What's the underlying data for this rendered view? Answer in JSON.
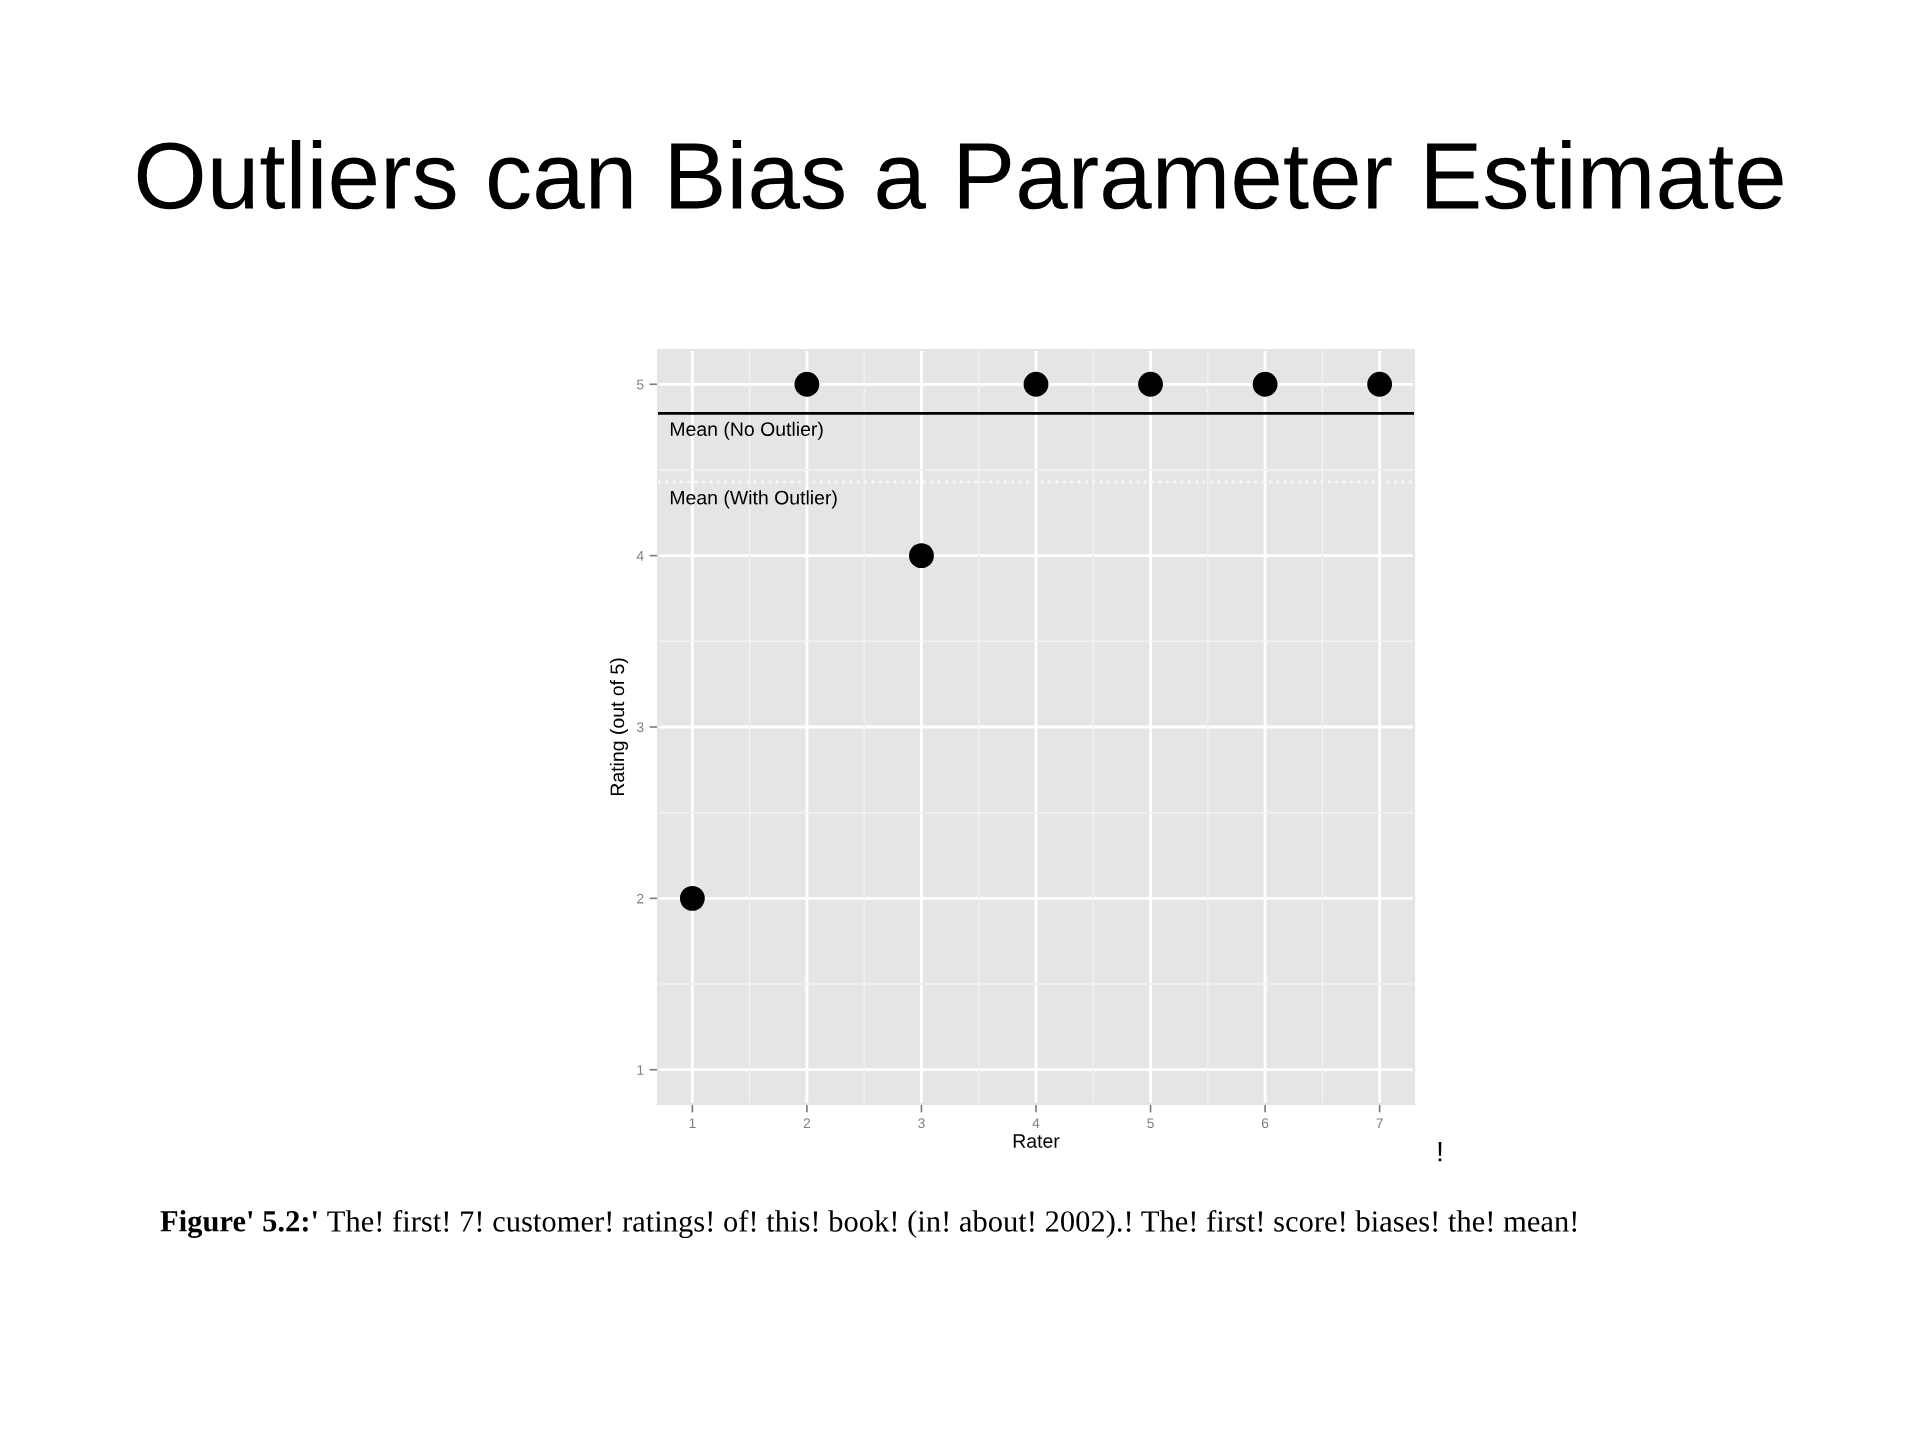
{
  "chart_data": {
    "type": "scatter",
    "title": "Outliers can Bias a Parameter Estimate",
    "xlabel": "Rater",
    "ylabel": "Rating (out of 5)",
    "x": [
      1,
      2,
      3,
      4,
      5,
      6,
      7
    ],
    "series": [
      {
        "color": "#000000",
        "values": [
          2,
          5,
          4,
          5,
          5,
          5,
          5
        ]
      }
    ],
    "marker": "circle",
    "xlim": [
      0.7,
      7.3
    ],
    "xticks": [
      1,
      2,
      3,
      4,
      5,
      6,
      7
    ],
    "ylim": [
      0.8,
      5.2
    ],
    "yticks": [
      1,
      2,
      3,
      4,
      5
    ],
    "grid": true,
    "ref_lines": [
      {
        "axis": "y",
        "value": 4.83,
        "label": "Mean (No Outlier)",
        "color": "#000000",
        "line_style": "solid"
      },
      {
        "axis": "y",
        "value": 4.43,
        "label": "Mean (With Outlier)",
        "color": "#f7f7f7",
        "line_style": "dotted"
      }
    ],
    "annotations": [
      "Figure' 5.2:'",
      "The! first! 7! customer! ratings! of! this! book! (in! about! 2002).! The! first! score! biases! the! mean!",
      "!"
    ]
  }
}
